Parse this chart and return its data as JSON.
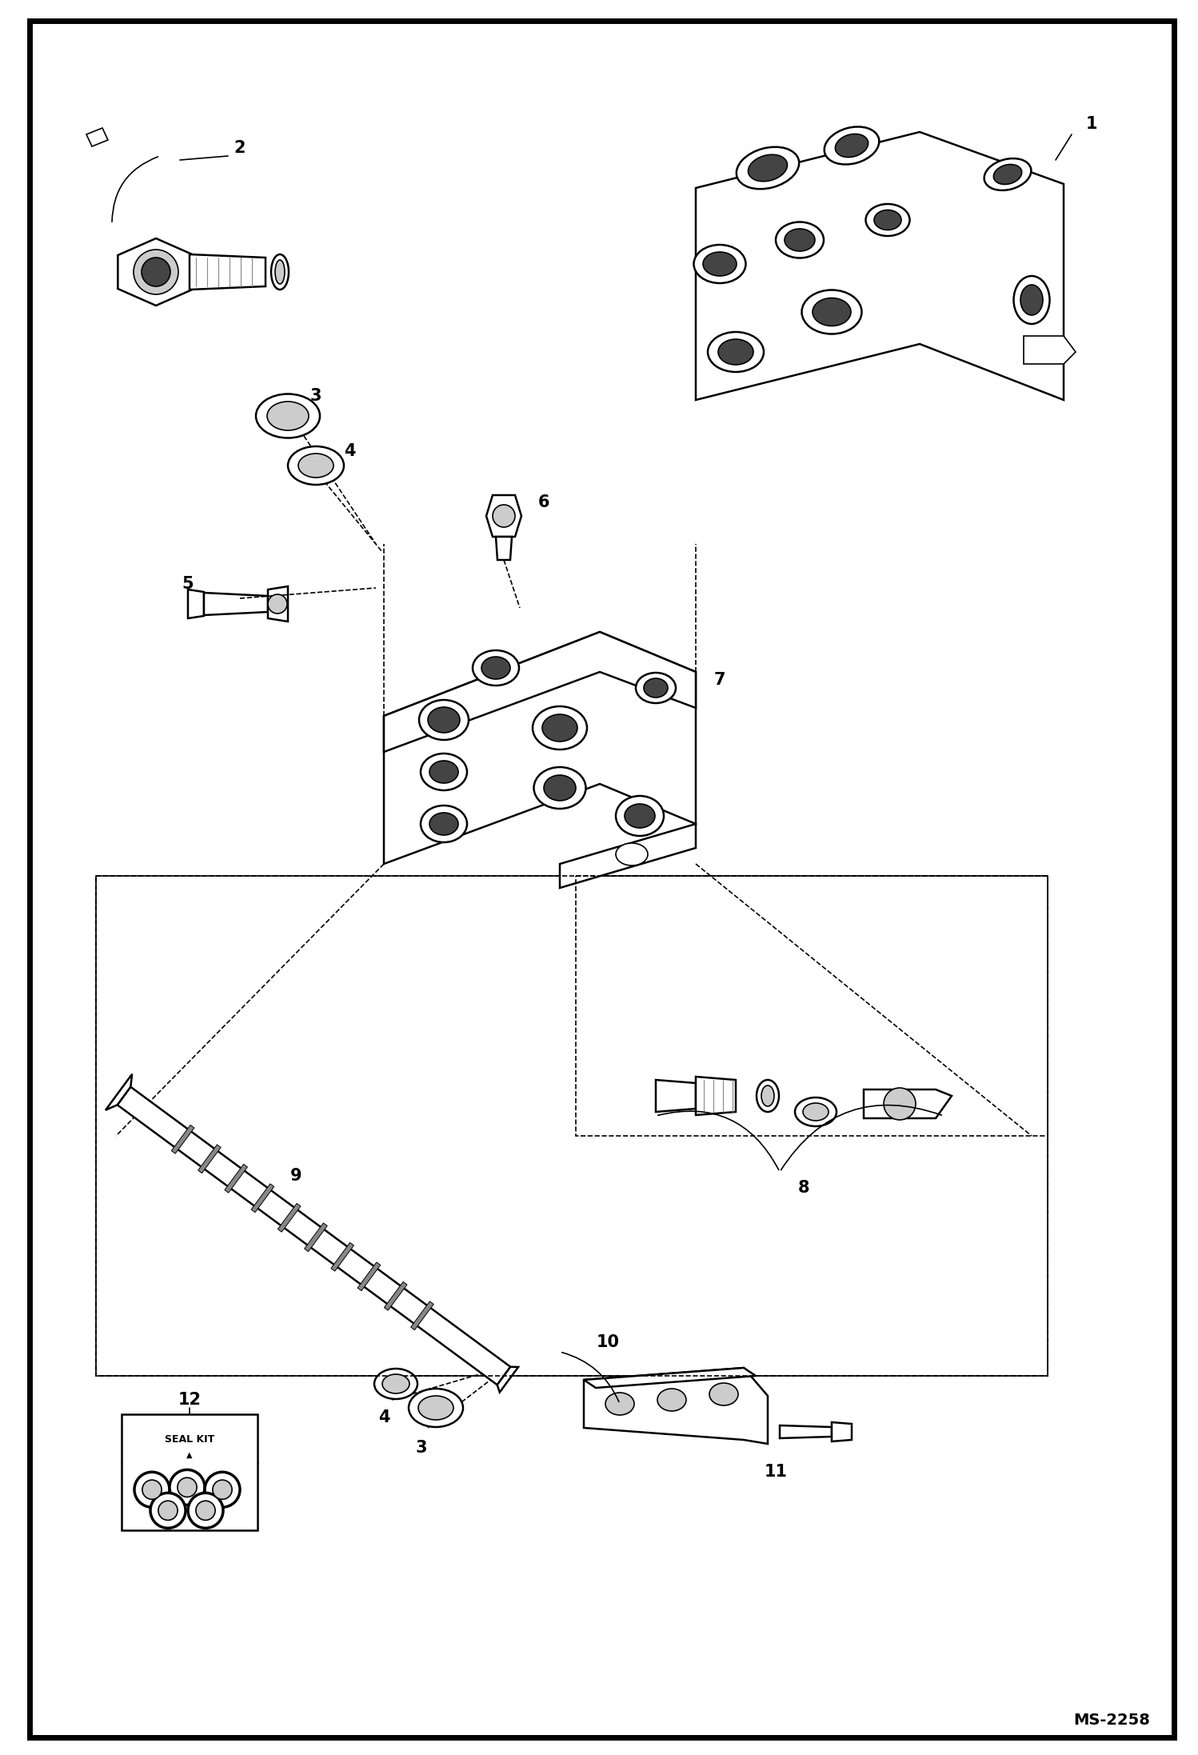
{
  "background_color": "#ffffff",
  "border_color": "#000000",
  "text_color": "#000000",
  "ms_label": "MS-2258",
  "figsize": [
    14.98,
    21.94
  ],
  "dpi": 100,
  "border": [
    0.025,
    0.012,
    0.955,
    0.978
  ],
  "lw_main": 1.8,
  "lw_thin": 1.2,
  "lw_dash": 1.2,
  "font_label": 14,
  "font_ms": 13
}
